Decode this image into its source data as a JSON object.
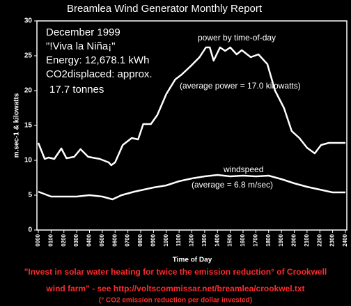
{
  "chart_data": {
    "type": "line",
    "title": "Breamlea Wind Generator Monthly Report",
    "annotations": [
      "December 1999",
      "\"!Viva la Niña¡\"",
      "Energy: 12,678.1 kWh",
      "CO2displaced: approx.",
      "17.7 tonnes"
    ],
    "series_notes": [
      "power by time-of-day",
      "(average power = 17.0 kilowatts)",
      "windspeed",
      "(average = 6.8 m/sec)"
    ],
    "ylabel": "m.sec-1 & kilowatts",
    "xlabel": "Time of Day",
    "footer": [
      "\"Invest in solar water heating for twice the emission reduction° of Crookwell",
      "wind farm\" - see http://voltscommissar.net/breamlea/crookwel.txt",
      "(° CO2 emission reduction per dollar invested)"
    ],
    "xlim": [
      0,
      24
    ],
    "xticks": [
      {
        "value": 0,
        "label": "0000"
      },
      {
        "value": 1,
        "label": "0100"
      },
      {
        "value": 2,
        "label": "0200"
      },
      {
        "value": 3,
        "label": "0300"
      },
      {
        "value": 4,
        "label": "0400"
      },
      {
        "value": 5,
        "label": "0500"
      },
      {
        "value": 6,
        "label": "0600"
      },
      {
        "value": 7,
        "label": "0700"
      },
      {
        "value": 8,
        "label": "0800"
      },
      {
        "value": 9,
        "label": "0900"
      },
      {
        "value": 10,
        "label": "1000"
      },
      {
        "value": 11,
        "label": "1100"
      },
      {
        "value": 12,
        "label": "1200"
      },
      {
        "value": 13,
        "label": "1300"
      },
      {
        "value": 14,
        "label": "1400"
      },
      {
        "value": 15,
        "label": "1500"
      },
      {
        "value": 16,
        "label": "1600"
      },
      {
        "value": 17,
        "label": "1700"
      },
      {
        "value": 18,
        "label": "1800"
      },
      {
        "value": 19,
        "label": "1900"
      },
      {
        "value": 20,
        "label": "2000"
      },
      {
        "value": 21,
        "label": "2100"
      },
      {
        "value": 22,
        "label": "2200"
      },
      {
        "value": 23,
        "label": "2300"
      },
      {
        "value": 24,
        "label": "2400"
      }
    ],
    "ylim": [
      0,
      30
    ],
    "yticks": [
      0,
      5,
      10,
      15,
      20,
      25,
      30
    ],
    "grid": false,
    "series": [
      {
        "name": "power",
        "color": "#ffffff",
        "x": [
          0,
          0.5,
          0.8,
          1.25,
          1.8,
          2.2,
          2.8,
          3.3,
          3.9,
          4.8,
          5.5,
          5.7,
          6.0,
          6.6,
          7.3,
          7.8,
          8.2,
          8.8,
          9.3,
          10,
          10.7,
          11.2,
          11.9,
          12.6,
          13.1,
          13.4,
          13.7,
          14.2,
          14.6,
          15,
          15.5,
          15.9,
          16.6,
          17.2,
          17.9,
          18.5,
          19.2,
          19.8,
          20.4,
          21,
          21.6,
          22.1,
          22.7,
          24
        ],
        "values": [
          12.5,
          10.2,
          10.4,
          10.2,
          11.7,
          10.3,
          10.5,
          11.6,
          10.5,
          10.2,
          9.7,
          9.3,
          9.7,
          12.2,
          13.2,
          13,
          15.2,
          15.2,
          16.5,
          19.5,
          21.6,
          22.3,
          23.5,
          24.8,
          26.2,
          26.2,
          24.3,
          26.2,
          25.7,
          26.2,
          25.2,
          25.8,
          24.8,
          25.2,
          23.8,
          20,
          17.5,
          14.2,
          13.2,
          11.8,
          11,
          12.2,
          12.5,
          12.5
        ]
      },
      {
        "name": "windspeed",
        "color": "#ffffff",
        "x": [
          0,
          1,
          3,
          4,
          5,
          5.8,
          6.5,
          7.5,
          9,
          10,
          11,
          12,
          13,
          14,
          15,
          16,
          17,
          18,
          19,
          20,
          21,
          22,
          23,
          24
        ],
        "values": [
          5.5,
          4.8,
          4.8,
          5,
          4.8,
          4.4,
          5.0,
          5.5,
          6.1,
          6.4,
          7,
          7.4,
          7.7,
          7.9,
          7.7,
          7.8,
          7.7,
          7.8,
          7.3,
          6.7,
          6.2,
          5.8,
          5.4,
          5.4
        ]
      }
    ]
  }
}
